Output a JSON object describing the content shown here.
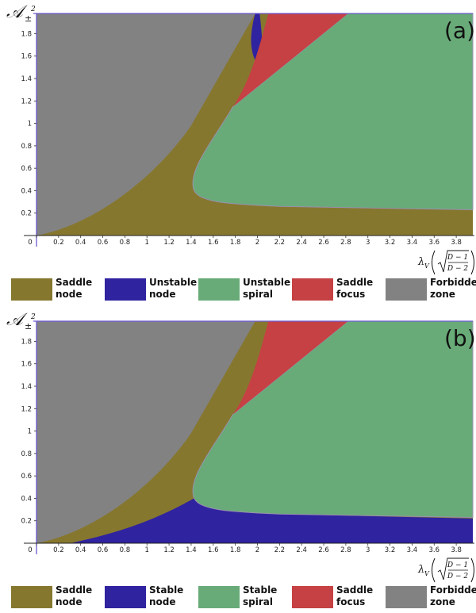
{
  "colors": {
    "saddle_node": "#86772f",
    "node": "#2f23a0",
    "spiral": "#68ab78",
    "saddle_focus": "#c54143",
    "forbidden": "#828282",
    "axis": "#6b5ad1"
  },
  "y_axis_label": "𝒜",
  "y_axis_subscript": "±",
  "y_axis_superscript": "2",
  "x_axis_label": {
    "lambda": "λ",
    "sub": "V",
    "num": "D − 1",
    "den": "D − 2"
  },
  "chart_data": [
    {
      "type": "area",
      "panel": "(a)",
      "xlim": [
        0,
        3.95
      ],
      "ylim": [
        0,
        1.98
      ],
      "x_ticks": [
        0,
        0.2,
        0.4,
        0.6,
        0.8,
        1,
        1.2,
        1.4,
        1.6,
        1.8,
        2,
        2.2,
        2.4,
        2.6,
        2.8,
        3,
        3.2,
        3.4,
        3.6,
        3.8
      ],
      "x_tick_labels": [
        "0",
        "0.2",
        "0.4",
        "0.6",
        "0.8",
        "1",
        "1.2",
        "1.4",
        "1.6",
        "1.8",
        "2",
        "2.2",
        "2.4",
        "2.6",
        "2.8",
        "3",
        "3.2",
        "3.4",
        "3.6",
        "3.8"
      ],
      "y_ticks": [
        0.2,
        0.4,
        0.6,
        0.8,
        1,
        1.2,
        1.4,
        1.6,
        1.8
      ],
      "y_tick_labels": [
        "0.2",
        "0.4",
        "0.6",
        "0.8",
        "1",
        "1.2",
        "1.4",
        "1.6",
        "1.8"
      ],
      "regions": [
        {
          "name": "Saddle node",
          "color_key": "saddle_node"
        },
        {
          "name": "Unstable node",
          "color_key": "node"
        },
        {
          "name": "Unstable spiral",
          "color_key": "spiral"
        },
        {
          "name": "Saddle focus",
          "color_key": "saddle_focus"
        },
        {
          "name": "Forbidden zone",
          "color_key": "forbidden"
        }
      ],
      "boundaries": {
        "forbidden_edge": [
          [
            0,
            0
          ],
          [
            0.2,
            0.02
          ],
          [
            0.6,
            0.18
          ],
          [
            1.0,
            0.5
          ],
          [
            1.4,
            0.98
          ],
          [
            1.8,
            1.58
          ],
          [
            2.0,
            1.98
          ]
        ],
        "spiral_lower": [
          [
            1.42,
            0.42
          ],
          [
            1.6,
            0.32
          ],
          [
            2.0,
            0.28
          ],
          [
            2.6,
            0.25
          ],
          [
            3.2,
            0.24
          ],
          [
            3.95,
            0.23
          ]
        ],
        "spiral_left": [
          [
            1.42,
            0.42
          ],
          [
            1.45,
            0.6
          ],
          [
            1.6,
            0.82
          ],
          [
            1.75,
            1.0
          ],
          [
            1.85,
            1.14
          ]
        ],
        "saddle_focus_edges": [
          [
            1.78,
            1.15
          ],
          [
            2.82,
            1.98
          ],
          [
            2.08,
            1.98
          ]
        ],
        "spiral_top_left": [
          2.82,
          1.98
        ]
      },
      "legend": [
        {
          "label": "Saddle\nnode",
          "color_key": "saddle_node"
        },
        {
          "label": "Unstable\nnode",
          "color_key": "node"
        },
        {
          "label": "Unstable\nspiral",
          "color_key": "spiral"
        },
        {
          "label": "Saddle\nfocus",
          "color_key": "saddle_focus"
        },
        {
          "label": "Forbidden\nzone",
          "color_key": "forbidden"
        }
      ]
    },
    {
      "type": "area",
      "panel": "(b)",
      "xlim": [
        0,
        3.95
      ],
      "ylim": [
        0,
        1.98
      ],
      "x_ticks": [
        0,
        0.2,
        0.4,
        0.6,
        0.8,
        1,
        1.2,
        1.4,
        1.6,
        1.8,
        2,
        2.2,
        2.4,
        2.6,
        2.8,
        3,
        3.2,
        3.4,
        3.6,
        3.8
      ],
      "x_tick_labels": [
        "0",
        "0.2",
        "0.4",
        "0.6",
        "0.8",
        "1",
        "1.2",
        "1.4",
        "1.6",
        "1.8",
        "2",
        "2.2",
        "2.4",
        "2.6",
        "2.8",
        "3",
        "3.2",
        "3.4",
        "3.6",
        "3.8"
      ],
      "y_ticks": [
        0.2,
        0.4,
        0.6,
        0.8,
        1,
        1.2,
        1.4,
        1.6,
        1.8
      ],
      "y_tick_labels": [
        "0.2",
        "0.4",
        "0.6",
        "0.8",
        "1",
        "1.2",
        "1.4",
        "1.6",
        "1.8"
      ],
      "regions": [
        {
          "name": "Saddle node",
          "color_key": "saddle_node"
        },
        {
          "name": "Stable node",
          "color_key": "node"
        },
        {
          "name": "Stable spiral",
          "color_key": "spiral"
        },
        {
          "name": "Saddle focus",
          "color_key": "saddle_focus"
        },
        {
          "name": "Forbidden zone",
          "color_key": "forbidden"
        }
      ],
      "legend": [
        {
          "label": "Saddle\nnode",
          "color_key": "saddle_node"
        },
        {
          "label": "Stable\nnode",
          "color_key": "node"
        },
        {
          "label": "Stable\nspiral",
          "color_key": "spiral"
        },
        {
          "label": "Saddle\nfocus",
          "color_key": "saddle_focus"
        },
        {
          "label": "Forbidden\nzone",
          "color_key": "forbidden"
        }
      ]
    }
  ]
}
